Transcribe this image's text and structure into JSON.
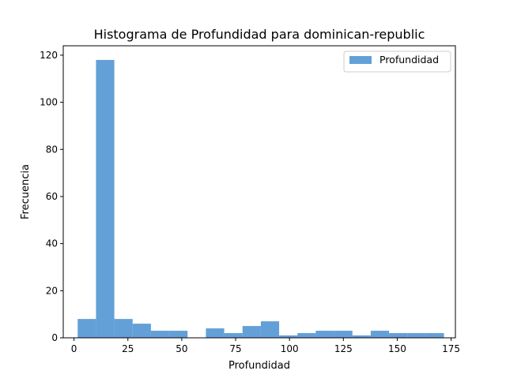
{
  "chart_data": {
    "type": "bar",
    "title": "Histograma de Profundidad para dominican-republic",
    "xlabel": "Profundidad",
    "ylabel": "Frecuencia",
    "xlim": [
      -5,
      177
    ],
    "ylim": [
      0,
      124
    ],
    "xticks": [
      0,
      25,
      50,
      75,
      100,
      125,
      150,
      175
    ],
    "yticks": [
      0,
      20,
      40,
      60,
      80,
      100,
      120
    ],
    "bar_color": "#5b9bd5",
    "legend": {
      "label": "Profundidad",
      "position": "top-right"
    },
    "series": [
      {
        "name": "Profundidad",
        "bins": [
          {
            "x0": 1.7,
            "x1": 10.2,
            "count": 8
          },
          {
            "x0": 10.2,
            "x1": 18.7,
            "count": 118
          },
          {
            "x0": 18.7,
            "x1": 27.2,
            "count": 8
          },
          {
            "x0": 27.2,
            "x1": 35.7,
            "count": 6
          },
          {
            "x0": 35.7,
            "x1": 44.2,
            "count": 3
          },
          {
            "x0": 44.2,
            "x1": 52.7,
            "count": 3
          },
          {
            "x0": 52.7,
            "x1": 61.2,
            "count": 0
          },
          {
            "x0": 61.2,
            "x1": 69.7,
            "count": 4
          },
          {
            "x0": 69.7,
            "x1": 78.2,
            "count": 2
          },
          {
            "x0": 78.2,
            "x1": 86.7,
            "count": 5
          },
          {
            "x0": 86.7,
            "x1": 95.2,
            "count": 7
          },
          {
            "x0": 95.2,
            "x1": 103.7,
            "count": 1
          },
          {
            "x0": 103.7,
            "x1": 112.2,
            "count": 2
          },
          {
            "x0": 112.2,
            "x1": 120.7,
            "count": 3
          },
          {
            "x0": 120.7,
            "x1": 129.2,
            "count": 3
          },
          {
            "x0": 129.2,
            "x1": 137.7,
            "count": 1
          },
          {
            "x0": 137.7,
            "x1": 146.2,
            "count": 3
          },
          {
            "x0": 146.2,
            "x1": 154.7,
            "count": 2
          },
          {
            "x0": 154.7,
            "x1": 163.2,
            "count": 2
          },
          {
            "x0": 163.2,
            "x1": 171.7,
            "count": 2
          }
        ]
      }
    ]
  }
}
